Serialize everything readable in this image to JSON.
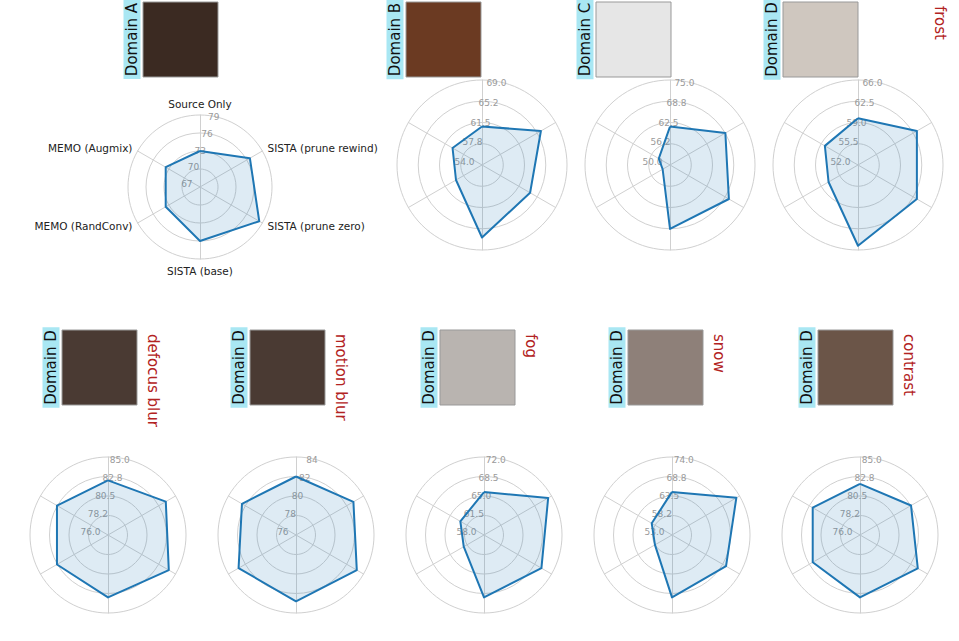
{
  "chart_data": [
    {
      "type": "radar",
      "title": "Domain A",
      "categories": [
        "Source Only",
        "MEMO (Augmix)",
        "MEMO (RandConv)",
        "SISTA (base)",
        "SISTA (prune zero)",
        "SISTA (prune rewind)"
      ],
      "values": [
        73.0,
        73.6,
        73.6,
        76.0,
        78.4,
        76.6
      ],
      "color": "#1f77b4",
      "ylim": [
        67,
        79
      ],
      "yticks": [
        67,
        70,
        73,
        76,
        79
      ],
      "grid": true
    },
    {
      "type": "radar",
      "title": "Domain B",
      "categories": [
        null,
        null,
        null,
        null,
        null,
        null
      ],
      "values": [
        60.8,
        60.0,
        59.3,
        66.8,
        63.8,
        66.0
      ],
      "color": "#1f77b4",
      "ylim": [
        54,
        69
      ],
      "yticks": [
        {
          "value": 54,
          "label": "54.0"
        },
        {
          "value": 57.75,
          "label": "57.8"
        },
        61.5,
        {
          "value": 65.25,
          "label": "65.2"
        },
        {
          "value": 69,
          "label": "69.0"
        }
      ],
      "grid": true
    },
    {
      "type": "radar",
      "title": "Domain C",
      "categories": [
        null,
        null,
        null,
        null,
        null,
        null
      ],
      "values": [
        61.3,
        53.8,
        52.5,
        68.8,
        70.0,
        68.8
      ],
      "color": "#1f77b4",
      "ylim": [
        50,
        75
      ],
      "yticks": [
        {
          "value": 50,
          "label": "50.0"
        },
        {
          "value": 56.25,
          "label": "56.2"
        },
        62.5,
        {
          "value": 68.75,
          "label": "68.8"
        },
        {
          "value": 75,
          "label": "75.0"
        }
      ],
      "grid": true
    },
    {
      "type": "radar",
      "title": "Domain D",
      "subtitle": "frost",
      "categories": [
        null,
        null,
        null,
        null,
        null,
        null
      ],
      "values": [
        59.7,
        58.3,
        57.6,
        65.3,
        63.2,
        63.2
      ],
      "color": "#1f77b4",
      "ylim": [
        52,
        66
      ],
      "yticks": [
        {
          "value": 52,
          "label": "52.0"
        },
        55.5,
        {
          "value": 59,
          "label": "59.0"
        },
        62.5,
        {
          "value": 66,
          "label": "66.0"
        }
      ],
      "grid": true
    },
    {
      "type": "radar",
      "title": "Domain D",
      "subtitle": "defocus blur",
      "categories": [
        null,
        null,
        null,
        null,
        null,
        null
      ],
      "values": [
        82.3,
        82.8,
        82.8,
        83.2,
        84.1,
        83.7
      ],
      "color": "#1f77b4",
      "ylim": [
        76,
        85
      ],
      "yticks": [
        {
          "value": 76,
          "label": "76.0"
        },
        {
          "value": 78.25,
          "label": "78.2"
        },
        80.5,
        {
          "value": 82.75,
          "label": "82.8"
        },
        {
          "value": 85,
          "label": "85.0"
        }
      ],
      "grid": true
    },
    {
      "type": "radar",
      "title": "Domain D",
      "subtitle": "motion blur",
      "categories": [
        null,
        null,
        null,
        null,
        null,
        null
      ],
      "values": [
        82.0,
        82.4,
        82.8,
        82.8,
        83.2,
        82.8
      ],
      "color": "#1f77b4",
      "ylim": [
        76,
        84
      ],
      "yticks": [
        76,
        78,
        80,
        82,
        84
      ],
      "grid": true
    },
    {
      "type": "radar",
      "title": "Domain D",
      "subtitle": "fog",
      "categories": [
        null,
        null,
        null,
        null,
        null,
        null
      ],
      "values": [
        65.7,
        62.9,
        62.2,
        69.2,
        69.9,
        71.3
      ],
      "color": "#1f77b4",
      "ylim": [
        58,
        72
      ],
      "yticks": [
        {
          "value": 58,
          "label": "58.0"
        },
        61.5,
        {
          "value": 65,
          "label": "65.0"
        },
        68.5,
        {
          "value": 72,
          "label": "72.0"
        }
      ],
      "grid": true
    },
    {
      "type": "radar",
      "title": "Domain D",
      "subtitle": "snow",
      "categories": [
        null,
        null,
        null,
        null,
        null,
        null
      ],
      "values": [
        64.6,
        59.3,
        58.3,
        69.8,
        69.8,
        73.0
      ],
      "color": "#1f77b4",
      "ylim": [
        53,
        74
      ],
      "yticks": [
        {
          "value": 53,
          "label": "53.0"
        },
        {
          "value": 58.25,
          "label": "58.2"
        },
        63.5,
        {
          "value": 68.75,
          "label": "68.8"
        },
        {
          "value": 74,
          "label": "74.0"
        }
      ],
      "grid": true
    },
    {
      "type": "radar",
      "title": "Domain D",
      "subtitle": "contrast",
      "categories": [
        null,
        null,
        null,
        null,
        null,
        null
      ],
      "values": [
        81.9,
        82.3,
        82.3,
        83.2,
        83.7,
        82.8
      ],
      "color": "#1f77b4",
      "ylim": [
        76,
        85
      ],
      "yticks": [
        {
          "value": 76,
          "label": "76.0"
        },
        {
          "value": 78.25,
          "label": "78.2"
        },
        80.5,
        {
          "value": 82.75,
          "label": "82.8"
        },
        {
          "value": 85,
          "label": "85.0"
        }
      ],
      "grid": true
    }
  ]
}
